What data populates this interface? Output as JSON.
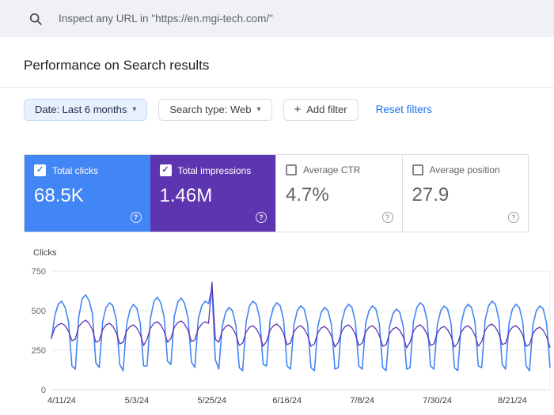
{
  "search_bar": {
    "placeholder": "Inspect any URL in \"https://en.mgi-tech.com/\""
  },
  "page": {
    "title": "Performance on Search results"
  },
  "filters": {
    "date": "Date: Last 6 months",
    "search_type": "Search type: Web",
    "add_filter": "Add filter",
    "reset": "Reset filters"
  },
  "icons": {
    "caret_down": "▾",
    "plus": "+",
    "check": "✓",
    "help": "?"
  },
  "metrics": [
    {
      "label": "Total clicks",
      "value": "68.5K",
      "checked": true,
      "color": "#4285f4"
    },
    {
      "label": "Total impressions",
      "value": "1.46M",
      "checked": true,
      "color": "#5e35b1"
    },
    {
      "label": "Average CTR",
      "value": "4.7%",
      "checked": false
    },
    {
      "label": "Average position",
      "value": "27.9",
      "checked": false
    }
  ],
  "chart_data": {
    "type": "line",
    "title": "Performance on Search results",
    "ylabel": "Clicks",
    "ylim": [
      0,
      750
    ],
    "yticks": [
      0,
      250,
      500,
      750
    ],
    "grid": true,
    "x_labels": [
      {
        "label": "4/11/24",
        "i": 3
      },
      {
        "label": "5/3/24",
        "i": 25
      },
      {
        "label": "5/25/24",
        "i": 47
      },
      {
        "label": "6/16/24",
        "i": 69
      },
      {
        "label": "7/8/24",
        "i": 91
      },
      {
        "label": "7/30/24",
        "i": 113
      },
      {
        "label": "8/21/24",
        "i": 135
      }
    ],
    "series": [
      {
        "name": "Total clicks",
        "color": "#4285f4",
        "values": [
          320,
          470,
          540,
          560,
          520,
          430,
          150,
          130,
          460,
          575,
          600,
          565,
          480,
          170,
          140,
          430,
          520,
          550,
          530,
          440,
          160,
          120,
          410,
          505,
          540,
          515,
          420,
          150,
          150,
          450,
          560,
          585,
          550,
          460,
          180,
          160,
          465,
          555,
          580,
          545,
          455,
          175,
          140,
          445,
          530,
          560,
          545,
          640,
          190,
          130,
          400,
          490,
          520,
          500,
          410,
          140,
          120,
          430,
          530,
          560,
          540,
          450,
          160,
          150,
          440,
          520,
          550,
          530,
          440,
          150,
          130,
          410,
          500,
          530,
          510,
          420,
          140,
          120,
          400,
          490,
          520,
          500,
          410,
          130,
          140,
          430,
          510,
          540,
          520,
          430,
          150,
          130,
          420,
          500,
          530,
          510,
          420,
          140,
          120,
          400,
          480,
          510,
          490,
          400,
          130,
          140,
          430,
          520,
          550,
          530,
          440,
          150,
          130,
          410,
          500,
          530,
          510,
          420,
          140,
          120,
          420,
          510,
          540,
          520,
          430,
          150,
          140,
          440,
          530,
          560,
          540,
          450,
          160,
          130,
          420,
          510,
          540,
          520,
          430,
          150,
          120,
          410,
          500,
          530,
          510,
          420,
          140
        ]
      },
      {
        "name": "Total impressions (scaled)",
        "color": "#5e35b1",
        "values": [
          330,
          390,
          410,
          420,
          405,
          370,
          310,
          320,
          400,
          425,
          440,
          420,
          380,
          300,
          310,
          380,
          410,
          420,
          400,
          360,
          290,
          300,
          370,
          400,
          410,
          390,
          350,
          280,
          320,
          390,
          420,
          430,
          410,
          370,
          300,
          325,
          395,
          425,
          435,
          415,
          375,
          305,
          315,
          385,
          415,
          430,
          420,
          680,
          320,
          300,
          370,
          400,
          410,
          390,
          350,
          280,
          295,
          365,
          395,
          405,
          385,
          345,
          275,
          305,
          375,
          405,
          415,
          395,
          355,
          285,
          295,
          365,
          395,
          405,
          385,
          345,
          275,
          290,
          360,
          390,
          400,
          380,
          340,
          270,
          300,
          370,
          400,
          410,
          390,
          350,
          280,
          295,
          365,
          395,
          405,
          385,
          345,
          275,
          285,
          355,
          385,
          395,
          375,
          335,
          265,
          300,
          370,
          400,
          410,
          390,
          350,
          280,
          290,
          360,
          390,
          400,
          380,
          340,
          270,
          295,
          365,
          395,
          405,
          385,
          345,
          275,
          305,
          375,
          405,
          415,
          395,
          355,
          285,
          295,
          365,
          395,
          405,
          385,
          345,
          275,
          285,
          355,
          385,
          395,
          375,
          335,
          265
        ]
      }
    ]
  }
}
